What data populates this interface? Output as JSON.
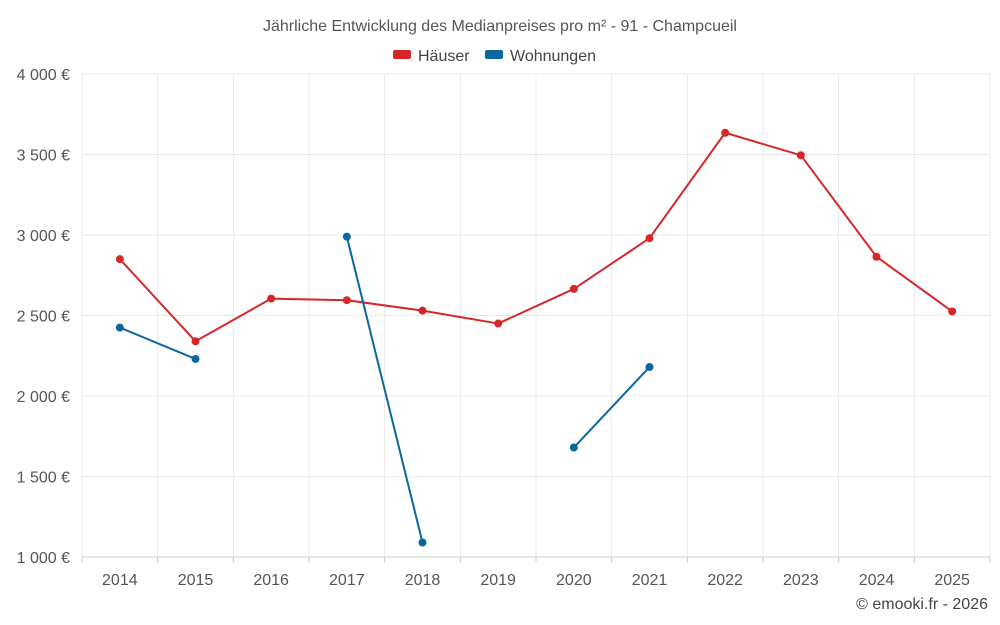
{
  "chart_data": {
    "type": "line",
    "title": "Jährliche Entwicklung des Medianpreises pro m² - 91 - Champcueil",
    "categories": [
      "2014",
      "2015",
      "2016",
      "2017",
      "2018",
      "2019",
      "2020",
      "2021",
      "2022",
      "2023",
      "2024",
      "2025"
    ],
    "ylim": [
      1000,
      4000
    ],
    "yticks": [
      1000,
      1500,
      2000,
      2500,
      3000,
      3500,
      4000
    ],
    "ytick_labels": [
      "1 000 €",
      "1 500 €",
      "2 000 €",
      "2 500 €",
      "3 000 €",
      "3 500 €",
      "4 000 €"
    ],
    "xlabel": "",
    "ylabel": "",
    "grid": true,
    "legend_position": "top-center",
    "series": [
      {
        "name": "Häuser",
        "color": "#d62728",
        "values": [
          2850,
          2340,
          2605,
          2595,
          2530,
          2450,
          2665,
          2980,
          3635,
          3495,
          2865,
          2525
        ]
      },
      {
        "name": "Wohnungen",
        "color": "#0b67a0",
        "values": [
          2425,
          2230,
          null,
          2990,
          1090,
          null,
          1680,
          2180,
          null,
          null,
          null,
          null
        ]
      }
    ]
  },
  "credit": "© emooki.fr - 2026"
}
